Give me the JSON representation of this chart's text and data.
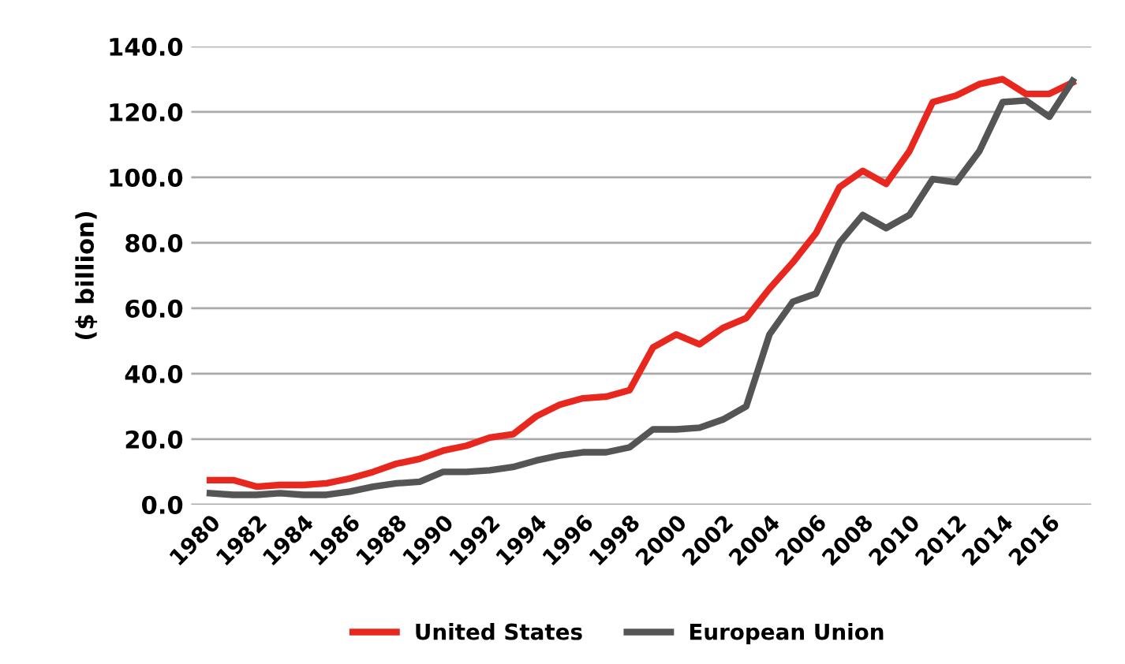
{
  "chart_data": {
    "type": "line",
    "ylabel": "($ billion)",
    "categories": [
      "1980",
      null,
      "1982",
      null,
      "1984",
      null,
      "1986",
      null,
      "1988",
      null,
      "1990",
      null,
      "1992",
      null,
      "1994",
      null,
      "1996",
      null,
      "1998",
      null,
      "2000",
      null,
      "2002",
      null,
      "2004",
      null,
      "2006",
      null,
      "2008",
      null,
      "2010",
      null,
      "2012",
      null,
      "2014",
      null,
      "2016",
      null
    ],
    "series": [
      {
        "name": "United States",
        "color": "#e8281e",
        "values": [
          7.5,
          7.5,
          5.5,
          6,
          6,
          6.5,
          8,
          10,
          12.5,
          14,
          16.5,
          18,
          20.5,
          21.5,
          27,
          30.5,
          32.5,
          33,
          35,
          48,
          52,
          49,
          54,
          57,
          66,
          74,
          83,
          97,
          102,
          98,
          108,
          123,
          125,
          128.5,
          130,
          125.5,
          125.5,
          129
        ]
      },
      {
        "name": "European Union",
        "color": "#555555",
        "values": [
          3.5,
          3,
          3,
          3.5,
          3,
          3,
          4,
          5.5,
          6.5,
          7,
          10,
          10,
          10.5,
          11.5,
          13.5,
          15,
          16,
          16,
          17.5,
          23,
          23,
          23.5,
          26,
          30,
          52,
          62,
          64.5,
          80,
          88.5,
          84.5,
          88.5,
          99.5,
          98.5,
          108,
          123,
          123.5,
          118.5,
          129.5
        ]
      }
    ],
    "ylim": [
      0,
      140
    ],
    "yticks": [
      {
        "value": 0,
        "label": "0.0"
      },
      {
        "value": 20,
        "label": "20.0"
      },
      {
        "value": 40,
        "label": "40.0"
      },
      {
        "value": 60,
        "label": "60.0"
      },
      {
        "value": 80,
        "label": "80.0"
      },
      {
        "value": 100,
        "label": "100.0"
      },
      {
        "value": 120,
        "label": "120.0"
      },
      {
        "value": 140,
        "label": "140.0"
      }
    ],
    "grid": "y",
    "legend": "bottom",
    "marker": "none",
    "line_style": "solid"
  }
}
